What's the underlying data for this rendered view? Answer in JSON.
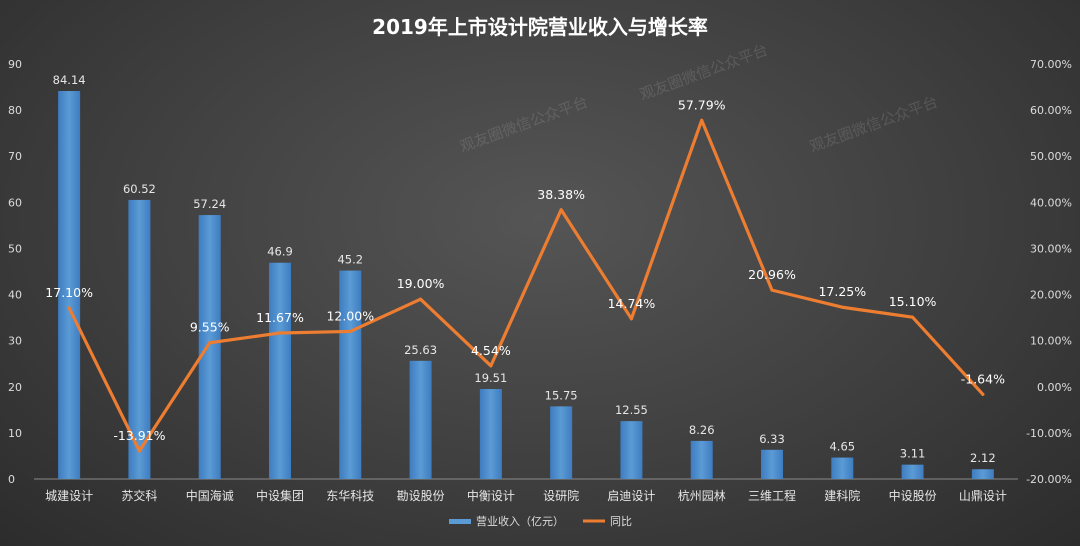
{
  "chart_data": {
    "type": "bar",
    "title": "2019年上市设计院营业收入与增长率",
    "categories": [
      "城建设计",
      "苏交科",
      "中国海诚",
      "中设集团",
      "东华科技",
      "勘设股份",
      "中衡设计",
      "设研院",
      "启迪设计",
      "杭州园林",
      "三维工程",
      "建科院",
      "中设股份",
      "山鼎设计"
    ],
    "series": [
      {
        "name": "营业收入（亿元）",
        "type": "bar",
        "axis": "left",
        "color": "#5b9bd5",
        "values": [
          84.14,
          60.52,
          57.24,
          46.9,
          45.2,
          25.63,
          19.51,
          15.75,
          12.55,
          8.26,
          6.33,
          4.65,
          3.11,
          2.12
        ],
        "labels": [
          "84.14",
          "60.52",
          "57.24",
          "46.9",
          "45.2",
          "25.63",
          "19.51",
          "15.75",
          "12.55",
          "8.26",
          "6.33",
          "4.65",
          "3.11",
          "2.12"
        ]
      },
      {
        "name": "同比",
        "type": "line",
        "axis": "right",
        "color": "#ed7d31",
        "values": [
          17.1,
          -13.91,
          9.55,
          11.67,
          12.0,
          19.0,
          4.54,
          38.38,
          14.74,
          57.79,
          20.96,
          17.25,
          15.1,
          -1.64
        ],
        "labels": [
          "17.10%",
          "-13.91%",
          "9.55%",
          "11.67%",
          "12.00%",
          "19.00%",
          "4.54%",
          "38.38%",
          "14.74%",
          "57.79%",
          "20.96%",
          "17.25%",
          "15.10%",
          "-1.64%"
        ]
      }
    ],
    "y_left": {
      "min": 0,
      "max": 90,
      "ticks": [
        0,
        10,
        20,
        30,
        40,
        50,
        60,
        70,
        80,
        90
      ],
      "tick_labels": [
        "0",
        "10",
        "20",
        "30",
        "40",
        "50",
        "60",
        "70",
        "80",
        "90"
      ]
    },
    "y_right": {
      "min": -20,
      "max": 70,
      "ticks": [
        -20,
        -10,
        0,
        10,
        20,
        30,
        40,
        50,
        60,
        70
      ],
      "tick_labels": [
        "-20.00%",
        "-10.00%",
        "0.00%",
        "10.00%",
        "20.00%",
        "30.00%",
        "40.00%",
        "50.00%",
        "60.00%",
        "70.00%"
      ]
    },
    "grid": false,
    "legend": {
      "position": "bottom",
      "entries": [
        "营业收入（亿元）",
        "同比"
      ]
    },
    "watermark": "观友圈微信公众平台"
  }
}
